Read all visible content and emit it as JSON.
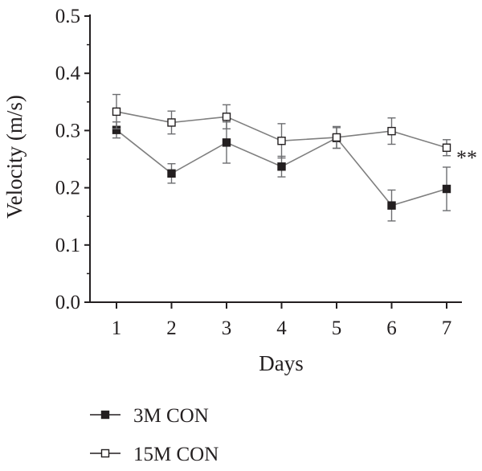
{
  "chart_data": {
    "type": "line",
    "xlabel": "Days",
    "ylabel": "Velocity (m/s)",
    "x": [
      1,
      2,
      3,
      4,
      5,
      6,
      7
    ],
    "ylim": [
      0.0,
      0.5
    ],
    "yticks": [
      "0.0",
      "0.1",
      "0.2",
      "0.3",
      "0.4",
      "0.5"
    ],
    "xticks": [
      "1",
      "2",
      "3",
      "4",
      "5",
      "6",
      "7"
    ],
    "grid": false,
    "legend_position": "bottom-left",
    "annotation": "**",
    "series": [
      {
        "name": "3M CON",
        "marker": "filled-square",
        "values": [
          0.301,
          0.225,
          0.279,
          0.237,
          0.287,
          0.169,
          0.198
        ],
        "errors": [
          0.014,
          0.017,
          0.036,
          0.018,
          0.018,
          0.027,
          0.038
        ]
      },
      {
        "name": "15M CON",
        "marker": "open-square",
        "values": [
          0.333,
          0.314,
          0.324,
          0.282,
          0.288,
          0.299,
          0.27
        ],
        "errors": [
          0.03,
          0.02,
          0.021,
          0.03,
          0.019,
          0.023,
          0.014
        ]
      }
    ],
    "colors": {
      "line": "#7f7f7f",
      "marker": "#231f20",
      "axis": "#231f20",
      "errorbar": "#6d6e71"
    }
  }
}
